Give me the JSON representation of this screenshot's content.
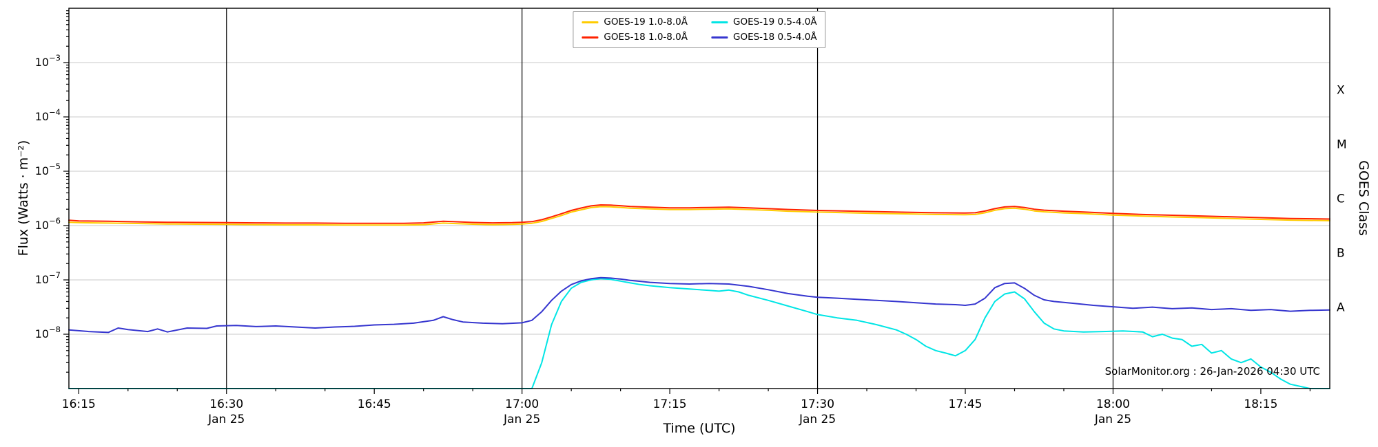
{
  "chart_data": {
    "type": "line",
    "title": "",
    "xlabel": "Time (UTC)",
    "ylabel": "Flux (Watts · m⁻²)",
    "ylabel_right": "GOES Class",
    "annotation": "SolarMonitor.org : 26-Jan-2026 04:30 UTC",
    "x_unit": "minutes after 16:15 UTC",
    "xlim": [
      -1,
      127
    ],
    "ylim_log10": [
      -9,
      -2
    ],
    "grid": true,
    "grid_color": "#c9c9c9",
    "frame_color": "#000000",
    "legend_position": "top-center",
    "x_ticks": [
      {
        "t": 0,
        "label": "16:15",
        "sublabel": ""
      },
      {
        "t": 15,
        "label": "16:30",
        "sublabel": "Jan 25"
      },
      {
        "t": 30,
        "label": "16:45",
        "sublabel": ""
      },
      {
        "t": 45,
        "label": "17:00",
        "sublabel": "Jan 25"
      },
      {
        "t": 60,
        "label": "17:15",
        "sublabel": ""
      },
      {
        "t": 75,
        "label": "17:30",
        "sublabel": "Jan 25"
      },
      {
        "t": 90,
        "label": "17:45",
        "sublabel": ""
      },
      {
        "t": 105,
        "label": "18:00",
        "sublabel": "Jan 25"
      },
      {
        "t": 120,
        "label": "18:15",
        "sublabel": ""
      }
    ],
    "y_tick_exponents": [
      -8,
      -7,
      -6,
      -5,
      -4,
      -3
    ],
    "vlines_t": [
      15,
      45,
      75,
      105
    ],
    "right_class_labels": [
      {
        "label": "X",
        "log_center": -3.5
      },
      {
        "label": "M",
        "log_center": -4.5
      },
      {
        "label": "C",
        "log_center": -5.5
      },
      {
        "label": "B",
        "log_center": -6.5
      },
      {
        "label": "A",
        "log_center": -7.5
      }
    ],
    "series": [
      {
        "name": "GOES-19 1.0-8.0Å",
        "color": "#ffcc00",
        "points": [
          [
            -1,
            1.15e-06
          ],
          [
            0,
            1.13e-06
          ],
          [
            3,
            1.11e-06
          ],
          [
            6,
            1.09e-06
          ],
          [
            9,
            1.07e-06
          ],
          [
            12,
            1.06e-06
          ],
          [
            15,
            1.05e-06
          ],
          [
            18,
            1.04e-06
          ],
          [
            21,
            1.03e-06
          ],
          [
            24,
            1.03e-06
          ],
          [
            27,
            1.02e-06
          ],
          [
            30,
            1.02e-06
          ],
          [
            33,
            1.02e-06
          ],
          [
            35,
            1.04e-06
          ],
          [
            37,
            1.11e-06
          ],
          [
            38,
            1.09e-06
          ],
          [
            40,
            1.06e-06
          ],
          [
            42,
            1.04e-06
          ],
          [
            44,
            1.05e-06
          ],
          [
            45,
            1.07e-06
          ],
          [
            46,
            1.1e-06
          ],
          [
            47,
            1.19e-06
          ],
          [
            48,
            1.35e-06
          ],
          [
            49,
            1.53e-06
          ],
          [
            50,
            1.77e-06
          ],
          [
            51,
            1.95e-06
          ],
          [
            52,
            2.14e-06
          ],
          [
            53,
            2.23e-06
          ],
          [
            54,
            2.21e-06
          ],
          [
            55,
            2.16e-06
          ],
          [
            56,
            2.09e-06
          ],
          [
            58,
            2.03e-06
          ],
          [
            60,
            1.97e-06
          ],
          [
            62,
            1.97e-06
          ],
          [
            64,
            2e-06
          ],
          [
            66,
            2.03e-06
          ],
          [
            68,
            1.97e-06
          ],
          [
            70,
            1.91e-06
          ],
          [
            72,
            1.84e-06
          ],
          [
            75,
            1.77e-06
          ],
          [
            78,
            1.72e-06
          ],
          [
            81,
            1.67e-06
          ],
          [
            84,
            1.64e-06
          ],
          [
            87,
            1.6e-06
          ],
          [
            90,
            1.58e-06
          ],
          [
            91,
            1.6e-06
          ],
          [
            92,
            1.72e-06
          ],
          [
            93,
            1.91e-06
          ],
          [
            94,
            2.05e-06
          ],
          [
            95,
            2.09e-06
          ],
          [
            96,
            2e-06
          ],
          [
            97,
            1.86e-06
          ],
          [
            98,
            1.79e-06
          ],
          [
            100,
            1.71e-06
          ],
          [
            102,
            1.66e-06
          ],
          [
            105,
            1.56e-06
          ],
          [
            108,
            1.49e-06
          ],
          [
            111,
            1.44e-06
          ],
          [
            114,
            1.4e-06
          ],
          [
            117,
            1.35e-06
          ],
          [
            120,
            1.3e-06
          ],
          [
            123,
            1.26e-06
          ],
          [
            127,
            1.23e-06
          ]
        ]
      },
      {
        "name": "GOES-18 1.0-8.0Å",
        "color": "#ff2200",
        "points": [
          [
            -1,
            1.25e-06
          ],
          [
            0,
            1.22e-06
          ],
          [
            3,
            1.2e-06
          ],
          [
            6,
            1.17e-06
          ],
          [
            9,
            1.15e-06
          ],
          [
            12,
            1.14e-06
          ],
          [
            15,
            1.13e-06
          ],
          [
            18,
            1.12e-06
          ],
          [
            21,
            1.11e-06
          ],
          [
            24,
            1.11e-06
          ],
          [
            27,
            1.1e-06
          ],
          [
            30,
            1.1e-06
          ],
          [
            33,
            1.1e-06
          ],
          [
            35,
            1.12e-06
          ],
          [
            37,
            1.2e-06
          ],
          [
            38,
            1.18e-06
          ],
          [
            40,
            1.14e-06
          ],
          [
            42,
            1.12e-06
          ],
          [
            44,
            1.13e-06
          ],
          [
            45,
            1.15e-06
          ],
          [
            46,
            1.18e-06
          ],
          [
            47,
            1.28e-06
          ],
          [
            48,
            1.45e-06
          ],
          [
            49,
            1.65e-06
          ],
          [
            50,
            1.9e-06
          ],
          [
            51,
            2.1e-06
          ],
          [
            52,
            2.3e-06
          ],
          [
            53,
            2.4e-06
          ],
          [
            54,
            2.38e-06
          ],
          [
            55,
            2.32e-06
          ],
          [
            56,
            2.25e-06
          ],
          [
            58,
            2.18e-06
          ],
          [
            60,
            2.12e-06
          ],
          [
            62,
            2.12e-06
          ],
          [
            64,
            2.15e-06
          ],
          [
            66,
            2.18e-06
          ],
          [
            68,
            2.12e-06
          ],
          [
            70,
            2.05e-06
          ],
          [
            72,
            1.98e-06
          ],
          [
            75,
            1.9e-06
          ],
          [
            78,
            1.85e-06
          ],
          [
            81,
            1.8e-06
          ],
          [
            84,
            1.76e-06
          ],
          [
            87,
            1.72e-06
          ],
          [
            90,
            1.7e-06
          ],
          [
            91,
            1.72e-06
          ],
          [
            92,
            1.85e-06
          ],
          [
            93,
            2.05e-06
          ],
          [
            94,
            2.2e-06
          ],
          [
            95,
            2.25e-06
          ],
          [
            96,
            2.15e-06
          ],
          [
            97,
            2e-06
          ],
          [
            98,
            1.92e-06
          ],
          [
            100,
            1.84e-06
          ],
          [
            102,
            1.78e-06
          ],
          [
            105,
            1.68e-06
          ],
          [
            108,
            1.6e-06
          ],
          [
            111,
            1.55e-06
          ],
          [
            114,
            1.5e-06
          ],
          [
            117,
            1.45e-06
          ],
          [
            120,
            1.4e-06
          ],
          [
            123,
            1.35e-06
          ],
          [
            127,
            1.32e-06
          ]
        ]
      },
      {
        "name": "GOES-19 0.5-4.0Å",
        "color": "#00e5e5",
        "points": [
          [
            -1,
            1e-09
          ],
          [
            10,
            1e-09
          ],
          [
            20,
            1e-09
          ],
          [
            30,
            1e-09
          ],
          [
            40,
            1e-09
          ],
          [
            46,
            1e-09
          ],
          [
            47,
            3e-09
          ],
          [
            48,
            1.5e-08
          ],
          [
            49,
            4e-08
          ],
          [
            50,
            7e-08
          ],
          [
            51,
            9e-08
          ],
          [
            52,
            1e-07
          ],
          [
            53,
            1.05e-07
          ],
          [
            54,
            1.02e-07
          ],
          [
            55,
            9.5e-08
          ],
          [
            56,
            8.8e-08
          ],
          [
            57,
            8.2e-08
          ],
          [
            58,
            7.8e-08
          ],
          [
            60,
            7.2e-08
          ],
          [
            62,
            6.8e-08
          ],
          [
            64,
            6.4e-08
          ],
          [
            65,
            6.2e-08
          ],
          [
            66,
            6.5e-08
          ],
          [
            67,
            6e-08
          ],
          [
            68,
            5.2e-08
          ],
          [
            70,
            4.2e-08
          ],
          [
            72,
            3.3e-08
          ],
          [
            74,
            2.6e-08
          ],
          [
            75,
            2.3e-08
          ],
          [
            77,
            2e-08
          ],
          [
            79,
            1.8e-08
          ],
          [
            81,
            1.5e-08
          ],
          [
            83,
            1.2e-08
          ],
          [
            84,
            1e-08
          ],
          [
            85,
            8e-09
          ],
          [
            86,
            6e-09
          ],
          [
            87,
            5e-09
          ],
          [
            88,
            4.5e-09
          ],
          [
            89,
            4e-09
          ],
          [
            90,
            5e-09
          ],
          [
            91,
            8e-09
          ],
          [
            92,
            2e-08
          ],
          [
            93,
            4e-08
          ],
          [
            94,
            5.5e-08
          ],
          [
            95,
            6e-08
          ],
          [
            96,
            4.5e-08
          ],
          [
            97,
            2.6e-08
          ],
          [
            98,
            1.6e-08
          ],
          [
            99,
            1.25e-08
          ],
          [
            100,
            1.15e-08
          ],
          [
            102,
            1.1e-08
          ],
          [
            104,
            1.12e-08
          ],
          [
            106,
            1.15e-08
          ],
          [
            108,
            1.1e-08
          ],
          [
            109,
            9e-09
          ],
          [
            110,
            1e-08
          ],
          [
            111,
            8.5e-09
          ],
          [
            112,
            8e-09
          ],
          [
            113,
            6e-09
          ],
          [
            114,
            6.5e-09
          ],
          [
            115,
            4.5e-09
          ],
          [
            116,
            5e-09
          ],
          [
            117,
            3.5e-09
          ],
          [
            118,
            3e-09
          ],
          [
            119,
            3.5e-09
          ],
          [
            120,
            2.5e-09
          ],
          [
            121,
            2e-09
          ],
          [
            122,
            1.5e-09
          ],
          [
            123,
            1.2e-09
          ],
          [
            125,
            1e-09
          ],
          [
            127,
            1e-09
          ]
        ]
      },
      {
        "name": "GOES-18 0.5-4.0Å",
        "color": "#3636cf",
        "points": [
          [
            -1,
            1.2e-08
          ],
          [
            1,
            1.12e-08
          ],
          [
            3,
            1.08e-08
          ],
          [
            4,
            1.3e-08
          ],
          [
            5,
            1.22e-08
          ],
          [
            7,
            1.12e-08
          ],
          [
            8,
            1.25e-08
          ],
          [
            9,
            1.1e-08
          ],
          [
            11,
            1.3e-08
          ],
          [
            13,
            1.28e-08
          ],
          [
            14,
            1.42e-08
          ],
          [
            16,
            1.45e-08
          ],
          [
            18,
            1.38e-08
          ],
          [
            20,
            1.42e-08
          ],
          [
            22,
            1.36e-08
          ],
          [
            24,
            1.3e-08
          ],
          [
            26,
            1.36e-08
          ],
          [
            28,
            1.4e-08
          ],
          [
            30,
            1.48e-08
          ],
          [
            32,
            1.52e-08
          ],
          [
            34,
            1.6e-08
          ],
          [
            36,
            1.8e-08
          ],
          [
            37,
            2.1e-08
          ],
          [
            38,
            1.85e-08
          ],
          [
            39,
            1.68e-08
          ],
          [
            41,
            1.6e-08
          ],
          [
            43,
            1.56e-08
          ],
          [
            45,
            1.62e-08
          ],
          [
            46,
            1.8e-08
          ],
          [
            47,
            2.6e-08
          ],
          [
            48,
            4.2e-08
          ],
          [
            49,
            6.2e-08
          ],
          [
            50,
            8.2e-08
          ],
          [
            51,
            9.6e-08
          ],
          [
            52,
            1.05e-07
          ],
          [
            53,
            1.1e-07
          ],
          [
            54,
            1.08e-07
          ],
          [
            55,
            1.04e-07
          ],
          [
            56,
            9.8e-08
          ],
          [
            57,
            9.4e-08
          ],
          [
            58,
            9e-08
          ],
          [
            60,
            8.6e-08
          ],
          [
            62,
            8.4e-08
          ],
          [
            64,
            8.6e-08
          ],
          [
            66,
            8.4e-08
          ],
          [
            68,
            7.6e-08
          ],
          [
            70,
            6.6e-08
          ],
          [
            72,
            5.6e-08
          ],
          [
            74,
            5e-08
          ],
          [
            75,
            4.8e-08
          ],
          [
            77,
            4.6e-08
          ],
          [
            79,
            4.4e-08
          ],
          [
            81,
            4.2e-08
          ],
          [
            83,
            4e-08
          ],
          [
            85,
            3.8e-08
          ],
          [
            87,
            3.6e-08
          ],
          [
            89,
            3.5e-08
          ],
          [
            90,
            3.4e-08
          ],
          [
            91,
            3.6e-08
          ],
          [
            92,
            4.6e-08
          ],
          [
            93,
            7.2e-08
          ],
          [
            94,
            8.6e-08
          ],
          [
            95,
            8.8e-08
          ],
          [
            96,
            7e-08
          ],
          [
            97,
            5.2e-08
          ],
          [
            98,
            4.3e-08
          ],
          [
            99,
            4e-08
          ],
          [
            101,
            3.7e-08
          ],
          [
            103,
            3.4e-08
          ],
          [
            105,
            3.2e-08
          ],
          [
            107,
            3e-08
          ],
          [
            109,
            3.15e-08
          ],
          [
            111,
            2.95e-08
          ],
          [
            113,
            3.05e-08
          ],
          [
            115,
            2.85e-08
          ],
          [
            117,
            2.95e-08
          ],
          [
            119,
            2.75e-08
          ],
          [
            121,
            2.85e-08
          ],
          [
            123,
            2.65e-08
          ],
          [
            125,
            2.75e-08
          ],
          [
            127,
            2.8e-08
          ]
        ]
      }
    ]
  }
}
